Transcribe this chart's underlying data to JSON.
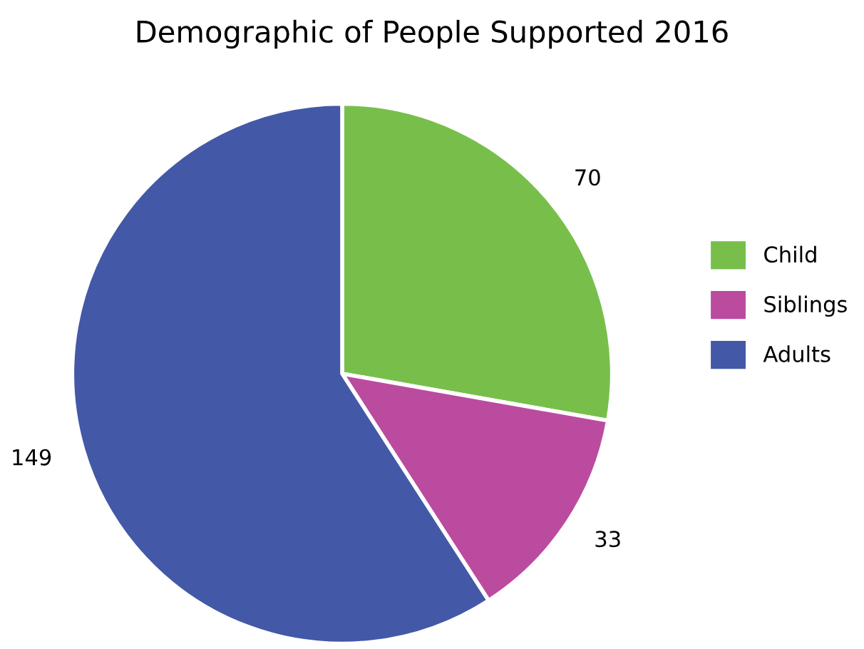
{
  "chart_data": {
    "type": "pie",
    "title": "Demographic of People Supported 2016",
    "categories": [
      "Child",
      "Siblings",
      "Adults"
    ],
    "values": [
      70,
      33,
      149
    ],
    "colors": [
      "#77bf4a",
      "#bb4b9f",
      "#4358a6"
    ],
    "data_labels": true,
    "legend": "right"
  }
}
